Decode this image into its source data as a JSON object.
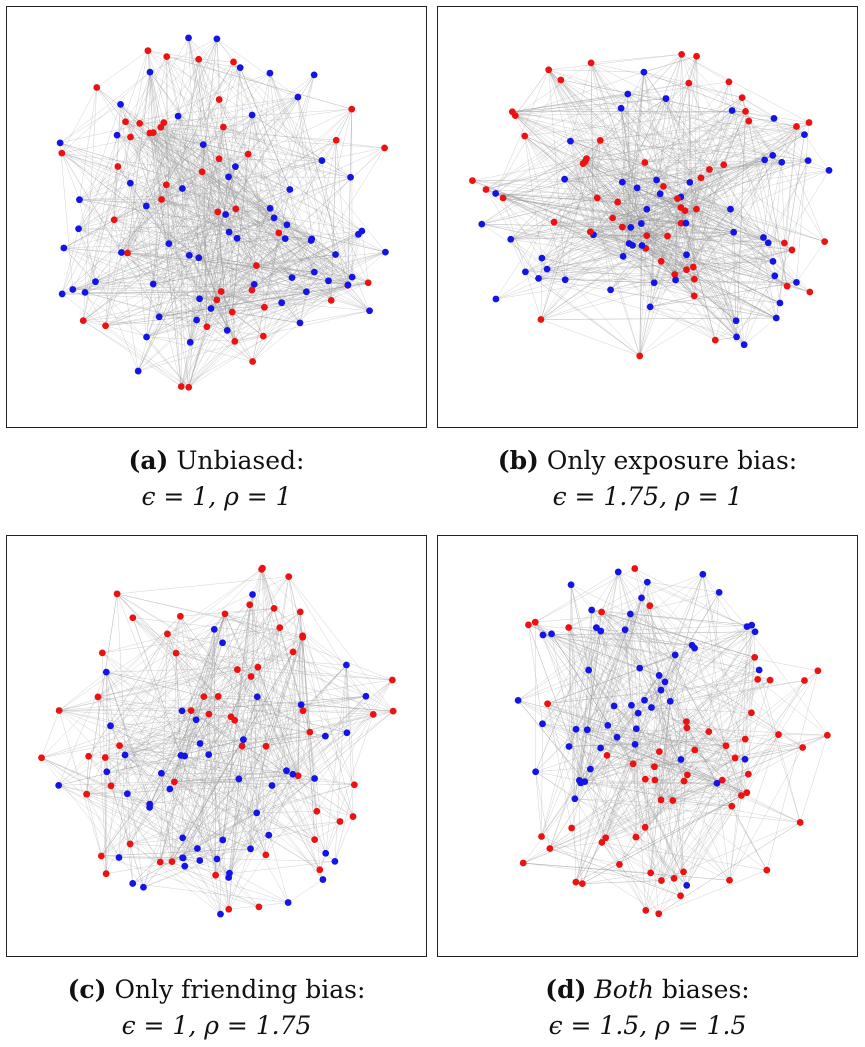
{
  "colors": {
    "red": "#ee1111",
    "blue": "#1414e6",
    "edge": "#9a9a9a",
    "frame": "#222222"
  },
  "panels": [
    {
      "tag": "(a)",
      "title": "Unbiased:",
      "title_emph": "",
      "params": "ϵ = 1, ρ = 1",
      "layout": "mixed",
      "seed": 11
    },
    {
      "tag": "(b)",
      "title": "Only exposure bias:",
      "title_emph": "",
      "params": "ϵ = 1.75, ρ = 1",
      "layout": "mixed",
      "seed": 23
    },
    {
      "tag": "(c)",
      "title": "Only friending bias:",
      "title_emph": "",
      "params": "ϵ = 1, ρ = 1.75",
      "layout": "ring",
      "seed": 37
    },
    {
      "tag": "(d)",
      "title": " biases:",
      "title_emph": "Both",
      "params": "ϵ = 1.5, ρ = 1.5",
      "layout": "split",
      "seed": 53
    }
  ]
}
